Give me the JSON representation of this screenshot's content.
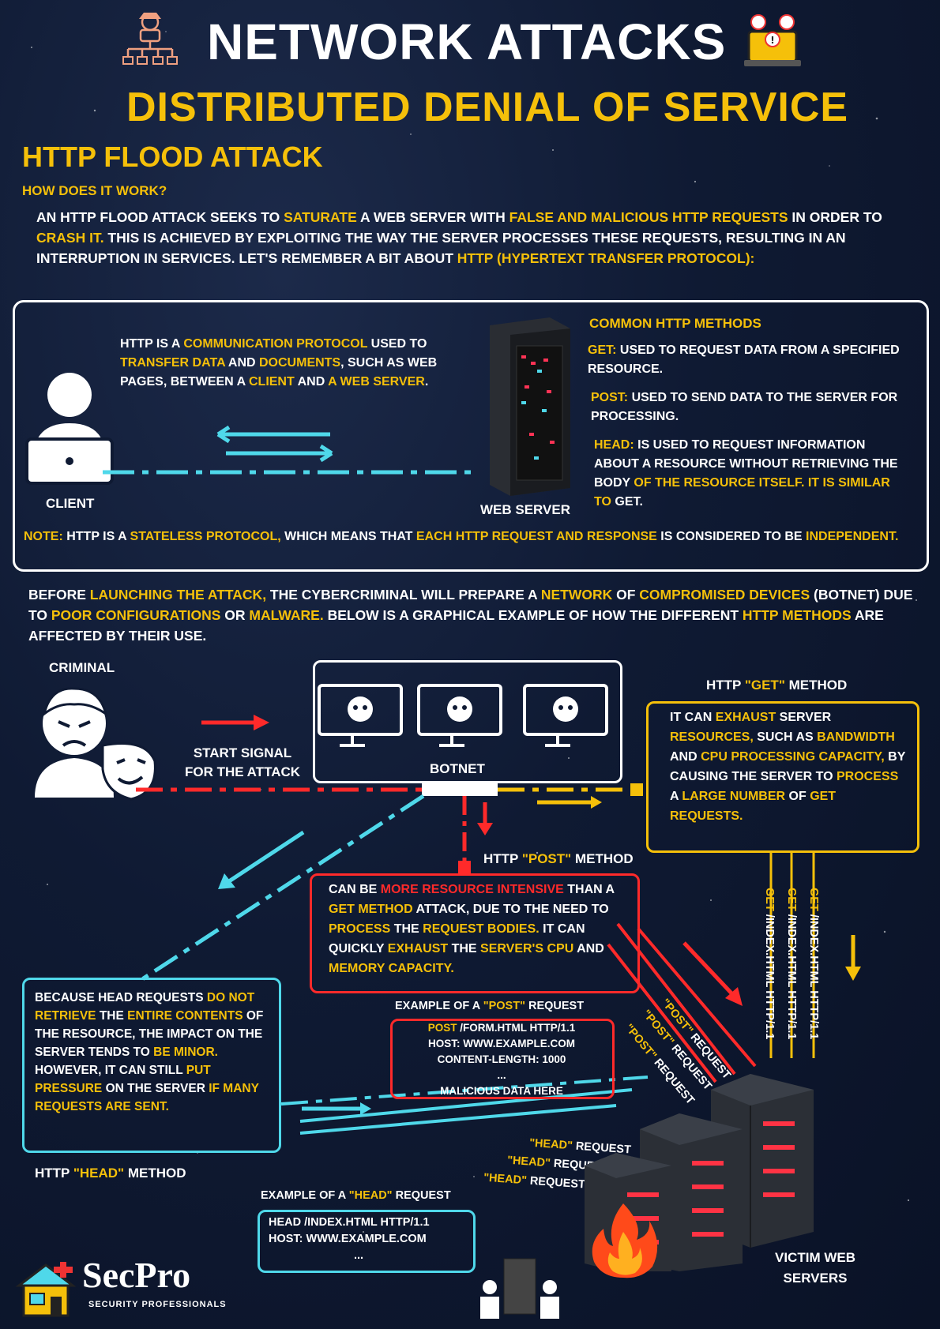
{
  "header": {
    "title": "NETWORK ATTACKS",
    "subtitle": "DISTRIBUTED DENIAL OF SERVICE",
    "section": "HTTP FLOOD ATTACK",
    "how_label": "HOW DOES IT WORK?"
  },
  "intro": {
    "p1": "AN HTTP FLOOD ATTACK SEEKS TO ",
    "h1": "SATURATE",
    "p2": " A WEB SERVER WITH ",
    "h2": "FALSE AND MALICIOUS HTTP REQUESTS",
    "p3": " IN ORDER TO ",
    "h3": "CRASH IT.",
    "p4": " THIS IS ACHIEVED BY EXPLOITING THE WAY THE SERVER PROCESSES THESE REQUESTS, RESULTING IN AN INTERRUPTION IN SERVICES. LET'S REMEMBER A BIT ABOUT ",
    "h4": "HTTP (HYPERTEXT TRANSFER PROTOCOL):"
  },
  "http_box": {
    "desc_p1": "HTTP IS A ",
    "desc_h1": "COMMUNICATION PROTOCOL",
    "desc_p2": " USED TO ",
    "desc_h2": "TRANSFER DATA",
    "desc_p3": " AND ",
    "desc_h3": "DOCUMENTS",
    "desc_p4": ", SUCH AS WEB PAGES, BETWEEN A ",
    "desc_h4": "CLIENT",
    "desc_p5": " AND ",
    "desc_h5": "A WEB SERVER",
    "desc_p6": ".",
    "client_label": "CLIENT",
    "server_label": "WEB SERVER",
    "methods_title": "COMMON HTTP METHODS",
    "get_key": "GET:",
    "get_text": " USED TO REQUEST DATA FROM A SPECIFIED RESOURCE.",
    "post_key": "POST:",
    "post_text": " USED TO SEND DATA TO THE SERVER FOR PROCESSING.",
    "head_key": "HEAD:",
    "head_text1": " IS USED TO REQUEST INFORMATION ABOUT A RESOURCE WITHOUT RETRIEVING THE BODY ",
    "head_text2": "OF THE RESOURCE ITSELF. IT IS SIMILAR TO",
    "head_text3": " GET.",
    "note_key": "NOTE:",
    "note_p1": " HTTP IS A ",
    "note_h1": "STATELESS PROTOCOL,",
    "note_p2": " WHICH MEANS THAT ",
    "note_h2": "EACH HTTP REQUEST AND RESPONSE",
    "note_p3": " IS CONSIDERED TO BE ",
    "note_h3": "INDEPENDENT."
  },
  "botnet_intro": {
    "p1": "BEFORE ",
    "h1": "LAUNCHING THE ATTACK,",
    "p2": " THE CYBERCRIMINAL WILL PREPARE A ",
    "h2": "NETWORK",
    "p3": " OF ",
    "h3": "COMPROMISED DEVICES",
    "p4": " (BOTNET) DUE TO ",
    "h4": "POOR CONFIGURATIONS",
    "p5": " OR ",
    "h5": "MALWARE.",
    "p6": " BELOW IS A GRAPHICAL EXAMPLE OF HOW THE DIFFERENT ",
    "h6": "HTTP METHODS",
    "p7": " ARE AFFECTED BY THEIR USE."
  },
  "attack": {
    "criminal_label": "CRIMINAL",
    "start_signal": "START SIGNAL FOR THE ATTACK",
    "botnet_label": "BOTNET",
    "get_title_p1": "HTTP ",
    "get_title_h": "\"GET\"",
    "get_title_p2": " METHOD",
    "get_desc_p1": "IT CAN ",
    "get_desc_h1": "EXHAUST",
    "get_desc_p2": " SERVER ",
    "get_desc_h2": "RESOURCES,",
    "get_desc_p3": " SUCH AS ",
    "get_desc_h3": "BANDWIDTH",
    "get_desc_p4": " AND ",
    "get_desc_h4": "CPU PROCESSING CAPACITY,",
    "get_desc_p5": " BY CAUSING THE SERVER TO ",
    "get_desc_h5": "PROCESS",
    "get_desc_p6": " A ",
    "get_desc_h6": "LARGE NUMBER",
    "get_desc_p7": " OF ",
    "get_desc_h7": "GET REQUESTS.",
    "post_title_p1": "HTTP ",
    "post_title_h": "\"POST\"",
    "post_title_p2": " METHOD",
    "post_desc_p1": "CAN BE ",
    "post_desc_h1": "MORE RESOURCE INTENSIVE",
    "post_desc_p2": " THAN A ",
    "post_desc_h2": "GET METHOD",
    "post_desc_p3": " ATTACK, DUE TO THE NEED TO ",
    "post_desc_h3": "PROCESS",
    "post_desc_p4": " THE ",
    "post_desc_h4": "REQUEST BODIES.",
    "post_desc_p5": " IT CAN QUICKLY ",
    "post_desc_h5": "EXHAUST",
    "post_desc_p6": " THE ",
    "post_desc_h6": "SERVER'S CPU",
    "post_desc_p7": " AND ",
    "post_desc_h7": "MEMORY CAPACITY.",
    "post_example_p1": "EXAMPLE OF A ",
    "post_example_h": "\"POST\"",
    "post_example_p2": " REQUEST",
    "post_code_kw": "POST",
    "post_code_1": " /FORM.HTML HTTP/1.1",
    "post_code_2": "HOST: WWW.EXAMPLE.COM",
    "post_code_3": "CONTENT-LENGTH: 1000",
    "post_code_4": "...",
    "post_code_5": "MALICIOUS DATA HERE",
    "head_desc_p1": "BECAUSE HEAD REQUESTS ",
    "head_desc_h1": "DO NOT RETRIEVE",
    "head_desc_p2": " THE ",
    "head_desc_h2": "ENTIRE CONTENTS",
    "head_desc_p3": " OF THE RESOURCE, THE IMPACT ON THE SERVER TENDS TO ",
    "head_desc_h3": "BE MINOR.",
    "head_desc_p4": " HOWEVER, IT CAN STILL ",
    "head_desc_h4": "PUT PRESSURE",
    "head_desc_p5": " ON THE SERVER ",
    "head_desc_h5": "IF MANY REQUESTS ARE SENT.",
    "head_title_p1": "HTTP ",
    "head_title_h": "\"HEAD\"",
    "head_title_p2": " METHOD",
    "head_example_p1": "EXAMPLE OF A ",
    "head_example_h": "\"HEAD\"",
    "head_example_p2": " REQUEST",
    "head_code_1": "HEAD /INDEX.HTML HTTP/1.1",
    "head_code_2": "HOST: WWW.EXAMPLE.COM",
    "head_code_3": "...",
    "get_req_kw": "GET",
    "get_req_path": " /INDEX.HTML HTTP/1.1",
    "post_req_h": "\"POST\"",
    "post_req_p": " REQUEST",
    "head_req_h": "\"HEAD\"",
    "head_req_p": " REQUEST",
    "victim_label": "VICTIM WEB SERVERS"
  },
  "brand": {
    "logo_main": "SecPro",
    "logo_sub": "SECURITY PROFESSIONALS"
  },
  "colors": {
    "accent": "#f5c00a",
    "danger": "#ff2a2a",
    "cyan": "#4fd8ea",
    "bg": "#0f1a33"
  }
}
